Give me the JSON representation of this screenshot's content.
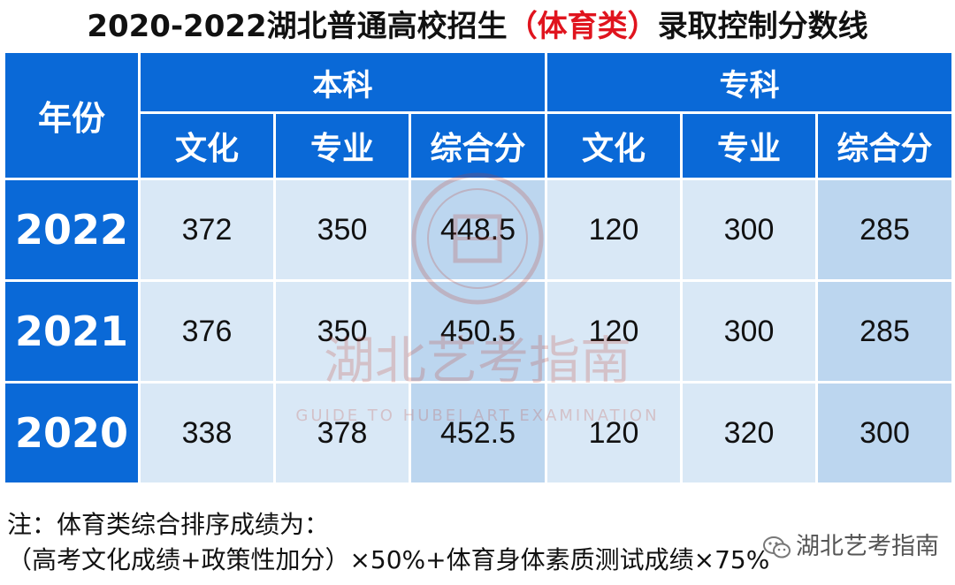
{
  "title": {
    "part1": "2020-2022湖北普通高校招生",
    "highlight": "（体育类）",
    "part2": "录取控制分数线"
  },
  "table": {
    "year_header": "年份",
    "groups": [
      "本科",
      "专科"
    ],
    "subheaders": [
      "文化",
      "专业",
      "综合分",
      "文化",
      "专业",
      "综合分"
    ],
    "rows": [
      {
        "year": "2022",
        "values": [
          "372",
          "350",
          "448.5",
          "120",
          "300",
          "285"
        ]
      },
      {
        "year": "2021",
        "values": [
          "376",
          "350",
          "450.5",
          "120",
          "300",
          "285"
        ]
      },
      {
        "year": "2020",
        "values": [
          "338",
          "378",
          "452.5",
          "120",
          "320",
          "300"
        ]
      }
    ]
  },
  "watermark": {
    "text": "湖北艺考指南",
    "subtext": "GUIDE TO HUBEI ART EXAMINATION"
  },
  "note": {
    "line1": "注：体育类综合排序成绩为：",
    "line2": "（高考文化成绩+政策性加分）×50%+体育身体素质测试成绩×75%"
  },
  "brand": {
    "icon": "wechat-icon",
    "label": "湖北艺考指南"
  },
  "colors": {
    "header_blue": "#0a69d7",
    "cell_light": "#d9e8f6",
    "cell_highlight": "#bcd6ef",
    "title_red": "#e0141e"
  }
}
